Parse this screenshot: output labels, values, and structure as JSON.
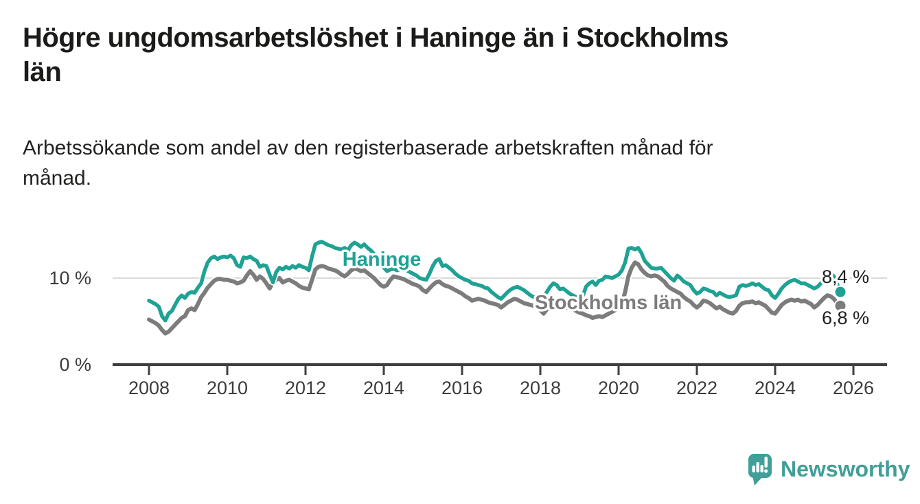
{
  "header": {
    "title_line1": "Högre ungdomsarbetslöshet i Haninge än i Stockholms",
    "title_line2": "län",
    "subtitle_line1": "Arbetssökande som andel av den registerbaserade arbetskraften månad för",
    "subtitle_line2": "månad."
  },
  "footer": {
    "brand": "Newsworthy",
    "brand_color": "#419E98"
  },
  "chart_data": {
    "type": "line",
    "title": "Högre ungdomsarbetslöshet i Haninge än i Stockholms län",
    "subtitle": "Arbetssökande som andel av den registerbaserade arbetskraften månad för månad.",
    "x_unit": "month",
    "x_start": "2008-01",
    "x_end": "2025-09",
    "xlabel": "",
    "ylabel": "",
    "ylim": [
      0,
      15
    ],
    "grid": "horizontal-10-only",
    "legend_position": "inline-labels",
    "x_tick_labels": [
      "2008",
      "2010",
      "2012",
      "2014",
      "2016",
      "2018",
      "2020",
      "2022",
      "2024",
      "2026"
    ],
    "y_ticks": [
      {
        "value": 0,
        "label": "0 %"
      },
      {
        "value": 10,
        "label": "10 %"
      }
    ],
    "series": [
      {
        "name": "Haninge",
        "label": "Haninge",
        "color": "#1FA294",
        "end_label": "8,4 %",
        "latest_value": 8.4,
        "values": [
          7.4,
          7.2,
          7.0,
          6.7,
          5.6,
          5.1,
          5.9,
          6.2,
          6.9,
          7.6,
          8.0,
          7.7,
          8.2,
          8.4,
          8.3,
          8.9,
          9.4,
          10.8,
          11.8,
          12.3,
          12.5,
          12.2,
          12.4,
          12.5,
          12.4,
          12.6,
          12.3,
          11.5,
          11.3,
          12.4,
          12.3,
          12.5,
          12.2,
          12.0,
          11.3,
          11.5,
          11.4,
          10.4,
          9.5,
          10.7,
          11.2,
          11.0,
          11.3,
          11.1,
          11.4,
          11.2,
          11.5,
          11.3,
          11.2,
          10.9,
          12.5,
          13.9,
          14.1,
          14.2,
          14.0,
          13.8,
          13.7,
          13.5,
          13.4,
          13.3,
          13.5,
          13.2,
          13.8,
          14.1,
          13.9,
          13.6,
          13.9,
          13.5,
          13.2,
          12.8,
          12.4,
          11.8,
          11.2,
          10.8,
          11.0,
          11.1,
          10.9,
          11.0,
          11.1,
          10.9,
          10.7,
          10.5,
          10.3,
          10.0,
          9.9,
          9.8,
          10.5,
          11.4,
          12.0,
          12.2,
          11.4,
          11.5,
          11.2,
          10.9,
          10.5,
          10.2,
          10.0,
          9.8,
          9.7,
          9.4,
          9.3,
          9.2,
          9.1,
          8.9,
          8.8,
          8.4,
          8.1,
          7.8,
          7.6,
          8.0,
          8.4,
          8.7,
          8.9,
          9.0,
          8.8,
          8.6,
          8.3,
          8.0,
          7.8,
          7.7,
          7.6,
          7.8,
          8.4,
          9.0,
          9.4,
          9.2,
          8.7,
          8.8,
          8.5,
          8.2,
          8.0,
          7.8,
          7.7,
          7.9,
          9.0,
          9.4,
          9.6,
          9.2,
          9.7,
          9.8,
          10.2,
          10.1,
          10.0,
          10.2,
          10.4,
          10.9,
          11.8,
          13.4,
          13.5,
          13.3,
          13.5,
          12.9,
          12.0,
          11.6,
          11.2,
          11.1,
          11.1,
          11.2,
          10.8,
          10.4,
          10.0,
          9.7,
          10.3,
          10.0,
          9.6,
          9.4,
          9.2,
          8.6,
          8.2,
          8.4,
          8.8,
          8.7,
          8.5,
          8.4,
          8.0,
          8.3,
          8.1,
          7.9,
          7.8,
          7.9,
          8.0,
          9.0,
          9.2,
          9.1,
          9.2,
          9.4,
          9.2,
          9.3,
          9.0,
          8.7,
          8.6,
          8.0,
          7.7,
          8.2,
          8.8,
          9.2,
          9.5,
          9.7,
          9.8,
          9.6,
          9.4,
          9.4,
          9.2,
          9.0,
          8.8,
          9.0,
          9.4,
          9.8,
          10.2,
          10.6,
          10.2,
          9.3,
          8.4
        ]
      },
      {
        "name": "Stockholms län",
        "label": "Stockholms län",
        "color": "#7C7C7C",
        "end_label": "6,8 %",
        "latest_value": 6.8,
        "values": [
          5.2,
          5.0,
          4.8,
          4.5,
          4.0,
          3.6,
          3.8,
          4.2,
          4.6,
          5.0,
          5.4,
          5.6,
          6.3,
          6.5,
          6.3,
          7.0,
          7.8,
          8.3,
          8.9,
          9.3,
          9.7,
          9.9,
          9.9,
          9.8,
          9.8,
          9.7,
          9.6,
          9.4,
          9.5,
          9.7,
          10.3,
          10.8,
          10.4,
          9.8,
          10.2,
          9.9,
          9.4,
          8.8,
          9.5,
          9.8,
          10.0,
          9.5,
          9.7,
          9.8,
          9.6,
          9.4,
          9.1,
          8.9,
          8.8,
          8.7,
          9.8,
          11.0,
          11.3,
          11.4,
          11.3,
          11.1,
          11.0,
          10.9,
          10.7,
          10.4,
          10.2,
          10.5,
          10.9,
          11.1,
          11.0,
          10.8,
          10.9,
          10.6,
          10.3,
          10.0,
          9.6,
          9.2,
          9.0,
          9.2,
          9.8,
          10.2,
          10.1,
          10.0,
          9.9,
          9.7,
          9.5,
          9.3,
          9.2,
          9.0,
          8.6,
          8.4,
          8.8,
          9.2,
          9.5,
          9.6,
          9.3,
          9.1,
          9.0,
          8.8,
          8.6,
          8.4,
          8.2,
          7.9,
          7.7,
          7.4,
          7.5,
          7.6,
          7.5,
          7.4,
          7.2,
          7.1,
          7.0,
          6.9,
          6.6,
          6.9,
          7.2,
          7.4,
          7.6,
          7.5,
          7.3,
          7.1,
          7.0,
          6.9,
          6.8,
          6.6,
          6.3,
          5.9,
          6.4,
          6.8,
          7.0,
          6.9,
          6.8,
          6.7,
          6.6,
          6.5,
          6.4,
          6.2,
          6.0,
          5.9,
          5.7,
          5.6,
          5.4,
          5.5,
          5.6,
          5.5,
          5.7,
          5.9,
          6.1,
          6.3,
          6.6,
          7.0,
          8.4,
          10.2,
          11.2,
          11.8,
          11.6,
          11.0,
          10.6,
          10.3,
          10.2,
          10.3,
          10.2,
          9.9,
          9.6,
          9.1,
          8.8,
          8.6,
          8.4,
          8.2,
          7.8,
          7.5,
          7.3,
          6.9,
          6.6,
          6.9,
          7.4,
          7.3,
          7.1,
          6.8,
          6.5,
          6.7,
          6.4,
          6.2,
          6.0,
          5.9,
          6.2,
          6.8,
          7.1,
          7.2,
          7.2,
          7.3,
          7.1,
          7.2,
          7.0,
          6.8,
          6.4,
          6.0,
          5.9,
          6.4,
          6.9,
          7.2,
          7.4,
          7.5,
          7.4,
          7.5,
          7.3,
          7.4,
          7.2,
          7.0,
          6.6,
          6.9,
          7.3,
          7.7,
          8.0,
          7.9,
          7.6,
          7.1,
          6.8
        ]
      }
    ]
  }
}
